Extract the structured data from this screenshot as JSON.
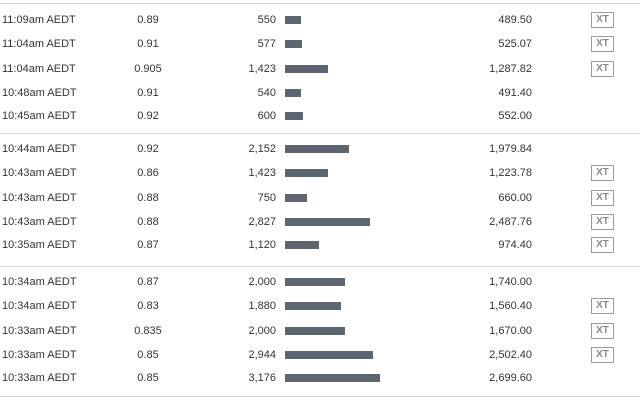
{
  "trades": {
    "xt_label": "XT",
    "max_volume": 3176,
    "groups": [
      {
        "rows": [
          {
            "time": "11:09am AEDT",
            "price": "0.89",
            "volume": "550",
            "value": "489.50",
            "xt": true
          },
          {
            "time": "11:04am AEDT",
            "price": "0.91",
            "volume": "577",
            "value": "525.07",
            "xt": true
          },
          {
            "time": "11:04am AEDT",
            "price": "0.905",
            "volume": "1,423",
            "value": "1,287.82",
            "xt": true
          },
          {
            "time": "10:48am AEDT",
            "price": "0.91",
            "volume": "540",
            "value": "491.40",
            "xt": false
          },
          {
            "time": "10:45am AEDT",
            "price": "0.92",
            "volume": "600",
            "value": "552.00",
            "xt": false
          }
        ]
      },
      {
        "rows": [
          {
            "time": "10:44am AEDT",
            "price": "0.92",
            "volume": "2,152",
            "value": "1,979.84",
            "xt": false
          },
          {
            "time": "10:43am AEDT",
            "price": "0.86",
            "volume": "1,423",
            "value": "1,223.78",
            "xt": true
          },
          {
            "time": "10:43am AEDT",
            "price": "0.88",
            "volume": "750",
            "value": "660.00",
            "xt": true
          },
          {
            "time": "10:43am AEDT",
            "price": "0.88",
            "volume": "2,827",
            "value": "2,487.76",
            "xt": true
          },
          {
            "time": "10:35am AEDT",
            "price": "0.87",
            "volume": "1,120",
            "value": "974.40",
            "xt": true
          }
        ]
      },
      {
        "rows": [
          {
            "time": "10:34am AEDT",
            "price": "0.87",
            "volume": "2,000",
            "value": "1,740.00",
            "xt": false
          },
          {
            "time": "10:34am AEDT",
            "price": "0.83",
            "volume": "1,880",
            "value": "1,560.40",
            "xt": true
          },
          {
            "time": "10:33am AEDT",
            "price": "0.835",
            "volume": "2,000",
            "value": "1,670.00",
            "xt": true
          },
          {
            "time": "10:33am AEDT",
            "price": "0.85",
            "volume": "2,944",
            "value": "2,502.40",
            "xt": true
          },
          {
            "time": "10:33am AEDT",
            "price": "0.85",
            "volume": "3,176",
            "value": "2,699.60",
            "xt": false
          }
        ]
      }
    ]
  }
}
